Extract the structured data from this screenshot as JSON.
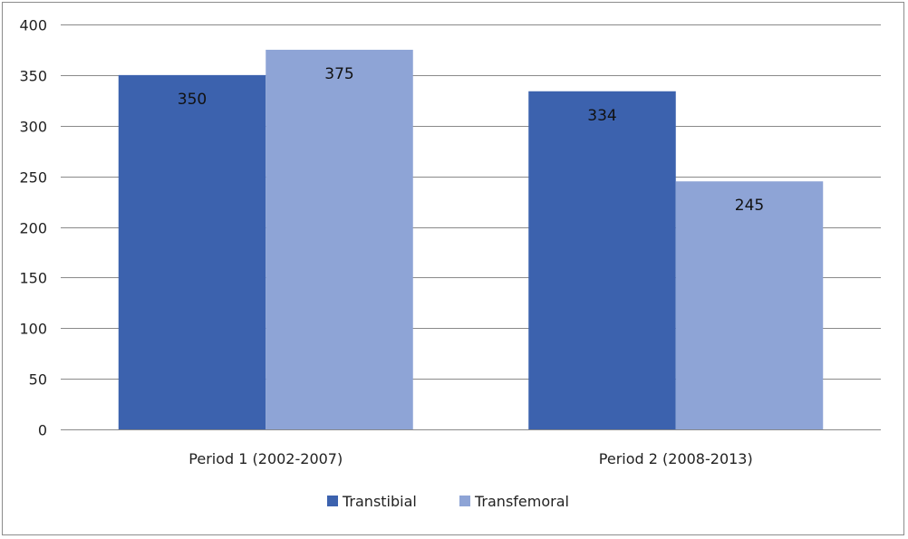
{
  "chart_data": {
    "type": "bar",
    "categories": [
      "Period 1 (2002-2007)",
      "Period 2 (2008-2013)"
    ],
    "series": [
      {
        "name": "Transtibial",
        "values": [
          350,
          334
        ],
        "color": "#3c62ae"
      },
      {
        "name": "Transfemoral",
        "values": [
          375,
          245
        ],
        "color": "#8ea4d6"
      }
    ],
    "title": "",
    "xlabel": "",
    "ylabel": "",
    "ylim": [
      0,
      400
    ],
    "yticks": [
      0,
      50,
      100,
      150,
      200,
      250,
      300,
      350,
      400
    ],
    "grid": true,
    "legend_position": "bottom",
    "data_labels": true
  }
}
